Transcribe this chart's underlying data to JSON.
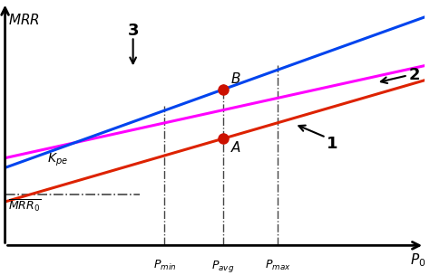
{
  "figsize": [
    4.74,
    3.04
  ],
  "dpi": 100,
  "bg_color": "#ffffff",
  "x_range": [
    0,
    10
  ],
  "y_range": [
    0,
    10
  ],
  "line_magenta_color": "#ff00ff",
  "line_red_color": "#dd2200",
  "line_blue_color": "#0044ee",
  "line_magenta_slope": 0.38,
  "line_magenta_intercept": 3.6,
  "line_red_slope": 0.5,
  "line_red_intercept": 1.8,
  "line_blue_slope": 0.62,
  "line_blue_intercept": 3.2,
  "x_pmin": 3.8,
  "x_pavg": 5.2,
  "x_pmax": 6.5,
  "mrr0_y": 2.1,
  "mrr0_x_end": 3.2,
  "point_color": "#cc1100",
  "dashed_color": "#444444",
  "label_fontsize": 11,
  "num_label_fontsize": 13,
  "axis_label_fontsize": 11
}
